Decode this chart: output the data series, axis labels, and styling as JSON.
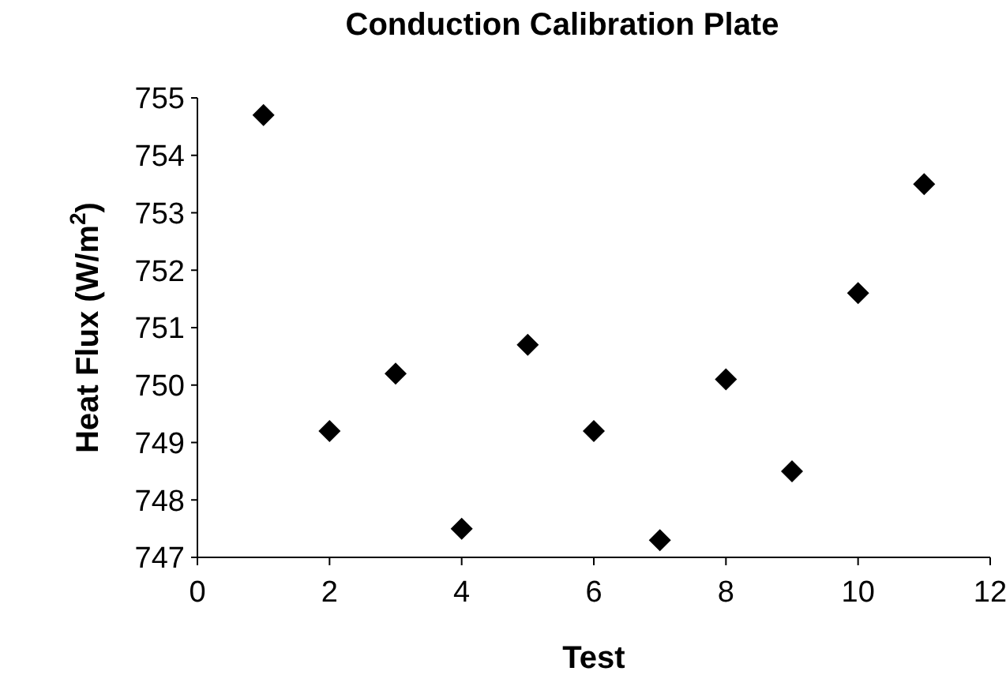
{
  "chart_data": {
    "type": "scatter",
    "title": "Conduction Calibration Plate",
    "xlabel": "Test",
    "ylabel": "Heat Flux (W/m$^{2}$)",
    "x": [
      1,
      2,
      3,
      4,
      5,
      6,
      7,
      8,
      9,
      10,
      11
    ],
    "series": [
      {
        "color": "#000000",
        "values": [
          754.7,
          749.2,
          750.2,
          747.5,
          750.7,
          749.2,
          747.3,
          750.1,
          748.5,
          751.6,
          753.5
        ]
      }
    ],
    "xlim": [
      0,
      12
    ],
    "xticks": [
      0,
      2,
      4,
      6,
      8,
      10,
      12
    ],
    "ylim": [
      747,
      755
    ],
    "yticks": [
      747,
      748,
      749,
      750,
      751,
      752,
      753,
      754,
      755
    ],
    "marker": "diamond",
    "grid": false
  }
}
